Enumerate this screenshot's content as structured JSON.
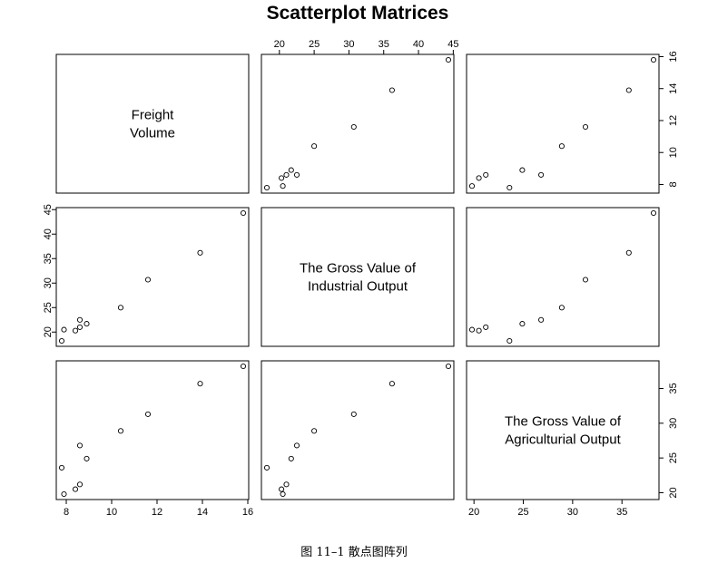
{
  "chart_data": {
    "type": "scatter-matrix",
    "title": "Scatterplot Matrices",
    "variables": [
      {
        "name_lines": [
          "Freight",
          "Volume"
        ],
        "ticks": [
          8,
          10,
          12,
          14,
          16
        ],
        "range": [
          7.8,
          15.8
        ]
      },
      {
        "name_lines": [
          "The Gross Value of",
          "Industrial Output"
        ],
        "ticks": [
          20,
          25,
          30,
          35,
          40,
          45
        ],
        "range": [
          18.2,
          44.3
        ]
      },
      {
        "name_lines": [
          "The Gross Value of",
          "Agriculturial Output"
        ],
        "ticks": [
          20,
          25,
          30,
          35
        ],
        "range": [
          19.8,
          38.2
        ]
      }
    ],
    "observations": [
      [
        7.8,
        18.2,
        23.6
      ],
      [
        7.9,
        20.5,
        19.8
      ],
      [
        8.4,
        20.3,
        20.5
      ],
      [
        8.6,
        21.0,
        21.2
      ],
      [
        8.6,
        22.5,
        26.8
      ],
      [
        8.9,
        21.7,
        24.9
      ],
      [
        10.4,
        25.0,
        28.9
      ],
      [
        11.6,
        30.7,
        31.3
      ],
      [
        13.9,
        36.2,
        35.7
      ],
      [
        15.8,
        44.3,
        38.2
      ]
    ],
    "grid": false,
    "legend": "none"
  },
  "caption": "图 11–1    散点图阵列"
}
